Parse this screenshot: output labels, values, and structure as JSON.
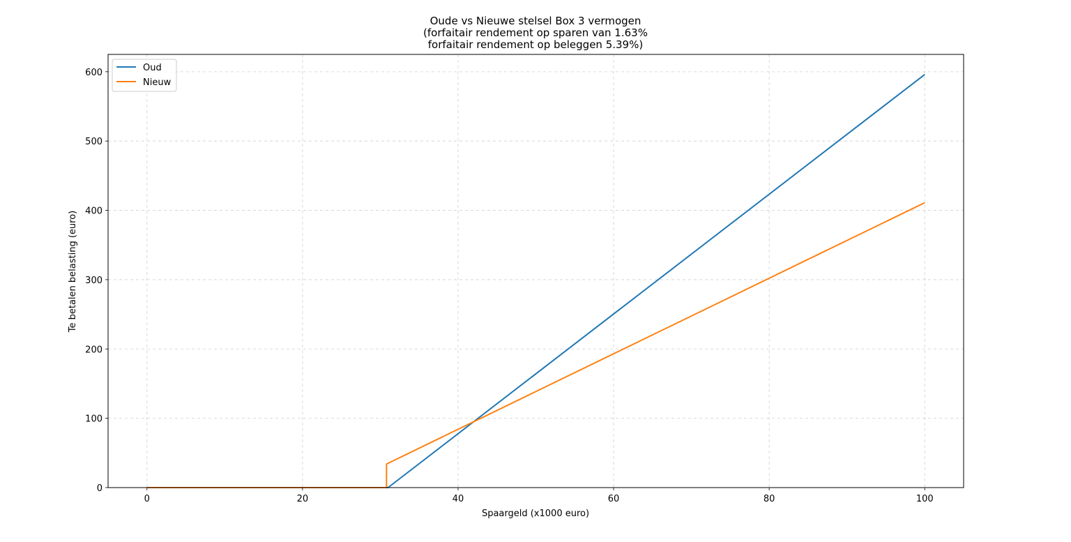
{
  "chart_data": {
    "type": "line",
    "title_lines": [
      "Oude vs Nieuwe stelsel Box 3 vermogen",
      "(forfaitair rendement op sparen van 1.63%",
      "forfaitair rendement op beleggen 5.39%)"
    ],
    "xlabel": "Spaargeld (x1000 euro)",
    "ylabel": "Te betalen belasting (euro)",
    "xlim": [
      -5,
      105
    ],
    "ylim": [
      0,
      625
    ],
    "xticks": [
      0,
      20,
      40,
      60,
      80,
      100
    ],
    "yticks": [
      0,
      100,
      200,
      300,
      400,
      500,
      600
    ],
    "grid": true,
    "legend_position": "upper-left",
    "series": [
      {
        "name": "Oud",
        "color": "#1f77b4",
        "x": [
          0,
          31,
          100
        ],
        "y": [
          0,
          0,
          596
        ]
      },
      {
        "name": "Nieuw",
        "color": "#ff7f0e",
        "x": [
          0,
          30.8,
          30.8,
          100
        ],
        "y": [
          0,
          0,
          34,
          411
        ]
      }
    ]
  }
}
